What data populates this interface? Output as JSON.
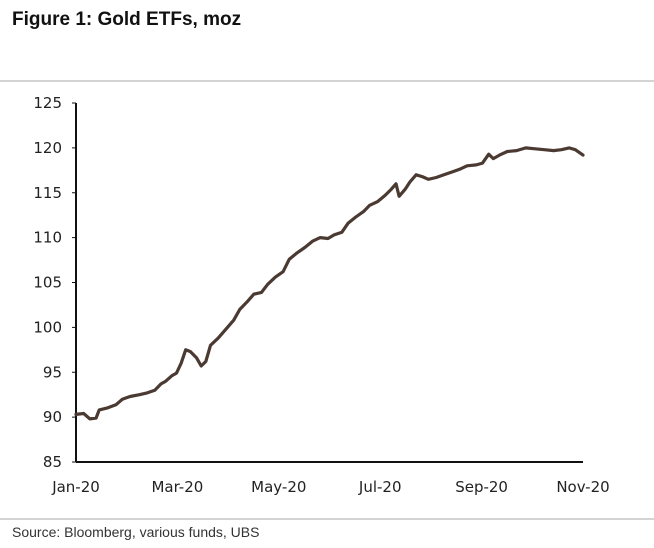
{
  "title": "Figure 1: Gold ETFs, moz",
  "source": "Source:  Bloomberg, various funds, UBS",
  "chart_data": {
    "type": "line",
    "title": "Figure 1: Gold ETFs, moz",
    "xlabel": "",
    "ylabel": "",
    "ylim": [
      85,
      125
    ],
    "yticks": [
      85,
      90,
      95,
      100,
      105,
      110,
      115,
      120,
      125
    ],
    "xticks": [
      "Jan-20",
      "Mar-20",
      "May-20",
      "Jul-20",
      "Sep-20",
      "Nov-20"
    ],
    "xlim": [
      "2020-01-01",
      "2020-11-24"
    ],
    "grid": false,
    "legend": "none",
    "colors": {
      "line": "#4a3a32",
      "axis": "#111111"
    },
    "series": [
      {
        "points": [
          [
            "2020-01-01",
            90.3
          ],
          [
            "2020-01-06",
            90.4
          ],
          [
            "2020-01-10",
            89.8
          ],
          [
            "2020-01-14",
            89.9
          ],
          [
            "2020-01-16",
            90.8
          ],
          [
            "2020-01-21",
            91.0
          ],
          [
            "2020-01-27",
            91.4
          ],
          [
            "2020-01-31",
            92.0
          ],
          [
            "2020-02-05",
            92.3
          ],
          [
            "2020-02-11",
            92.5
          ],
          [
            "2020-02-16",
            92.7
          ],
          [
            "2020-02-21",
            93.0
          ],
          [
            "2020-02-25",
            93.7
          ],
          [
            "2020-02-28",
            94.0
          ],
          [
            "2020-03-03",
            94.6
          ],
          [
            "2020-03-06",
            94.9
          ],
          [
            "2020-03-09",
            96.0
          ],
          [
            "2020-03-12",
            97.5
          ],
          [
            "2020-03-15",
            97.3
          ],
          [
            "2020-03-19",
            96.6
          ],
          [
            "2020-03-22",
            95.7
          ],
          [
            "2020-03-25",
            96.2
          ],
          [
            "2020-03-28",
            98.0
          ],
          [
            "2020-04-02",
            98.8
          ],
          [
            "2020-04-07",
            99.8
          ],
          [
            "2020-04-12",
            100.8
          ],
          [
            "2020-04-16",
            102.0
          ],
          [
            "2020-04-21",
            102.9
          ],
          [
            "2020-04-25",
            103.7
          ],
          [
            "2020-04-30",
            103.9
          ],
          [
            "2020-05-04",
            104.8
          ],
          [
            "2020-05-09",
            105.6
          ],
          [
            "2020-05-14",
            106.2
          ],
          [
            "2020-05-18",
            107.6
          ],
          [
            "2020-05-23",
            108.3
          ],
          [
            "2020-05-28",
            108.9
          ],
          [
            "2020-06-02",
            109.6
          ],
          [
            "2020-06-07",
            110.0
          ],
          [
            "2020-06-12",
            109.9
          ],
          [
            "2020-06-16",
            110.3
          ],
          [
            "2020-06-21",
            110.6
          ],
          [
            "2020-06-25",
            111.6
          ],
          [
            "2020-06-30",
            112.3
          ],
          [
            "2020-07-05",
            112.9
          ],
          [
            "2020-07-09",
            113.6
          ],
          [
            "2020-07-14",
            114.0
          ],
          [
            "2020-07-19",
            114.7
          ],
          [
            "2020-07-23",
            115.4
          ],
          [
            "2020-07-26",
            116.0
          ],
          [
            "2020-07-28",
            114.6
          ],
          [
            "2020-08-01",
            115.4
          ],
          [
            "2020-08-04",
            116.2
          ],
          [
            "2020-08-08",
            117.0
          ],
          [
            "2020-08-12",
            116.8
          ],
          [
            "2020-08-16",
            116.5
          ],
          [
            "2020-08-21",
            116.7
          ],
          [
            "2020-08-26",
            117.0
          ],
          [
            "2020-08-31",
            117.3
          ],
          [
            "2020-09-05",
            117.6
          ],
          [
            "2020-09-10",
            118.0
          ],
          [
            "2020-09-16",
            118.1
          ],
          [
            "2020-09-20",
            118.3
          ],
          [
            "2020-09-24",
            119.3
          ],
          [
            "2020-09-27",
            118.8
          ],
          [
            "2020-10-01",
            119.2
          ],
          [
            "2020-10-06",
            119.6
          ],
          [
            "2020-10-12",
            119.7
          ],
          [
            "2020-10-18",
            120.0
          ],
          [
            "2020-10-24",
            119.9
          ],
          [
            "2020-10-30",
            119.8
          ],
          [
            "2020-11-05",
            119.7
          ],
          [
            "2020-11-10",
            119.8
          ],
          [
            "2020-11-15",
            120.0
          ],
          [
            "2020-11-19",
            119.8
          ],
          [
            "2020-11-24",
            119.2
          ]
        ]
      }
    ]
  }
}
